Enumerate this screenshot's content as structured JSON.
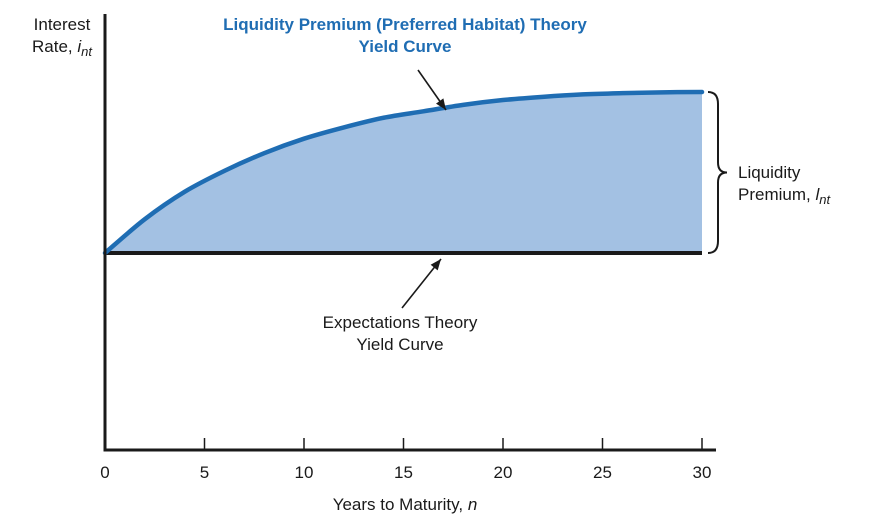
{
  "chart_data": {
    "type": "area",
    "xlabel": "Years to Maturity, ",
    "xlabel_var": "n",
    "ylabel_line1": "Interest",
    "ylabel_line2": "Rate, ",
    "ylabel_var": "i",
    "ylabel_sub": "nt",
    "xlim": [
      0,
      30
    ],
    "x_ticks": [
      "0",
      "5",
      "10",
      "15",
      "20",
      "25",
      "30"
    ],
    "y_axis_ticks": false,
    "grid": false,
    "series": [
      {
        "name": "Liquidity Premium (Preferred Habitat) Theory Yield Curve",
        "color": "#1f6db3",
        "fill": "#a3c1e3",
        "x": [
          0,
          2,
          4,
          6,
          8,
          10,
          12,
          14,
          16,
          18,
          20,
          22,
          24,
          26,
          28,
          30
        ],
        "y": [
          0,
          0.21,
          0.38,
          0.51,
          0.62,
          0.71,
          0.78,
          0.84,
          0.88,
          0.92,
          0.95,
          0.97,
          0.985,
          0.993,
          0.998,
          1.0
        ]
      },
      {
        "name": "Expectations Theory Yield Curve",
        "color": "#1a1a1a",
        "x": [
          0,
          30
        ],
        "y": [
          0,
          0
        ]
      }
    ],
    "annotations": {
      "top_curve_line1": "Liquidity Premium (Preferred Habitat) Theory",
      "top_curve_line2": "Yield Curve",
      "flat_line1": "Expectations Theory",
      "flat_line2": "Yield Curve",
      "premium_line1": "Liquidity",
      "premium_line2": "Premium, ",
      "premium_var": "l",
      "premium_sub": "nt"
    }
  }
}
